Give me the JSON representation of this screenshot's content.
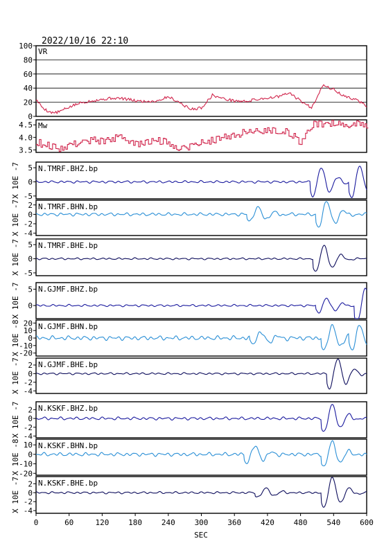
{
  "header": {
    "datetime": "2022/10/16 22:10"
  },
  "colors": {
    "vr_mw": "#d0234a",
    "bhz": "#1a1a9e",
    "bhn": "#2a8fd6",
    "bhe": "#0d0d5c",
    "axis": "#000000",
    "grid": "#000000"
  },
  "chart_data": {
    "type": "line",
    "xlabel": "SEC",
    "xlim": [
      0,
      600
    ],
    "xticks": [
      "0",
      "60",
      "120",
      "180",
      "240",
      "300",
      "360",
      "420",
      "480",
      "540",
      "600"
    ],
    "vr": {
      "label": "VR",
      "ylim": [
        0,
        100
      ],
      "yticks": [
        "0",
        "20",
        "40",
        "60",
        "80",
        "100"
      ],
      "x": [
        0,
        10,
        20,
        30,
        40,
        60,
        80,
        100,
        120,
        140,
        160,
        180,
        200,
        220,
        240,
        260,
        280,
        300,
        320,
        340,
        360,
        380,
        400,
        420,
        440,
        460,
        480,
        500,
        520,
        540,
        560,
        580,
        600
      ],
      "values": [
        24,
        14,
        8,
        5,
        6,
        13,
        19,
        22,
        24,
        26,
        25,
        22,
        21,
        22,
        28,
        20,
        10,
        12,
        30,
        25,
        22,
        21,
        24,
        26,
        28,
        33,
        22,
        12,
        44,
        38,
        28,
        24,
        15
      ]
    },
    "mw": {
      "label": "Mw",
      "ylim": [
        3.4,
        4.7
      ],
      "yticks": [
        "3.5",
        "4.0",
        "4.5"
      ],
      "x": [
        0,
        20,
        40,
        60,
        80,
        100,
        120,
        140,
        160,
        180,
        200,
        220,
        240,
        260,
        280,
        300,
        320,
        340,
        360,
        380,
        400,
        420,
        440,
        460,
        480,
        500,
        520,
        540,
        560,
        580,
        600
      ],
      "values": [
        3.8,
        3.7,
        3.55,
        3.7,
        3.8,
        3.9,
        3.85,
        3.95,
        4.0,
        3.7,
        3.8,
        3.9,
        3.75,
        3.6,
        3.65,
        3.8,
        3.9,
        4.0,
        4.1,
        4.2,
        4.25,
        4.3,
        4.3,
        4.15,
        3.8,
        4.5,
        4.55,
        4.6,
        4.5,
        4.55,
        4.5
      ]
    },
    "traces": [
      {
        "label": "N.TMRF.BHZ.bp",
        "unit": "X 10E -7",
        "yticks": [
          "-5",
          "0",
          "5"
        ],
        "ylim": [
          -6,
          7
        ],
        "color_key": "bhz",
        "noise": 0.45,
        "seed": 11,
        "events": [
          {
            "t": 510,
            "amp": 5.2
          },
          {
            "t": 580,
            "amp": 6.0
          }
        ]
      },
      {
        "label": "N.TMRF.BHN.bp",
        "unit": "X 10E -7",
        "yticks": [
          "-4",
          "-2",
          "0",
          "2"
        ],
        "ylim": [
          -4.5,
          3
        ],
        "color_key": "bhn",
        "noise": 0.35,
        "seed": 23,
        "events": [
          {
            "t": 395,
            "amp": 1.5
          },
          {
            "t": 520,
            "amp": 3.0
          }
        ]
      },
      {
        "label": "N.TMRF.BHE.bp",
        "unit": "X 10E -7",
        "yticks": [
          "-5",
          "0",
          "5"
        ],
        "ylim": [
          -6,
          7
        ],
        "color_key": "bhe",
        "noise": 0.35,
        "seed": 37,
        "events": [
          {
            "t": 515,
            "amp": 5.0
          }
        ]
      },
      {
        "label": "N.GJMF.BHZ.bp",
        "unit": "X 10E -7",
        "yticks": [
          "0",
          "5"
        ],
        "ylim": [
          -4,
          7
        ],
        "color_key": "bhz",
        "noise": 0.35,
        "seed": 41,
        "events": [
          {
            "t": 520,
            "amp": 2.2
          },
          {
            "t": 590,
            "amp": 5.5
          }
        ]
      },
      {
        "label": "N.GJMF.BHN.bp",
        "unit": "X 10E -8",
        "yticks": [
          "-20",
          "-10",
          "0",
          "10",
          "20"
        ],
        "ylim": [
          -24,
          24
        ],
        "color_key": "bhn",
        "noise": 3.0,
        "seed": 53,
        "events": [
          {
            "t": 400,
            "amp": 8
          },
          {
            "t": 530,
            "amp": 18
          },
          {
            "t": 580,
            "amp": 20
          }
        ]
      },
      {
        "label": "N.GJMF.BHE.bp",
        "unit": "X 10E -7",
        "yticks": [
          "-4",
          "-2",
          "0",
          "2"
        ],
        "ylim": [
          -4.6,
          3.6
        ],
        "color_key": "bhe",
        "noise": 0.25,
        "seed": 67,
        "events": [
          {
            "t": 540,
            "amp": 3.6
          }
        ]
      },
      {
        "label": "N.KSKF.BHZ.bp",
        "unit": "X 10E -7",
        "yticks": [
          "-4",
          "-2",
          "0",
          "2"
        ],
        "ylim": [
          -4.4,
          3.8
        ],
        "color_key": "bhz",
        "noise": 0.35,
        "seed": 71,
        "events": [
          {
            "t": 530,
            "amp": 3.2
          }
        ]
      },
      {
        "label": "N.KSKF.BHN.bp",
        "unit": "X 10E -8",
        "yticks": [
          "-20",
          "-10",
          "0",
          "10"
        ],
        "ylim": [
          -22,
          16
        ],
        "color_key": "bhn",
        "noise": 2.0,
        "seed": 83,
        "events": [
          {
            "t": 390,
            "amp": 9
          },
          {
            "t": 530,
            "amp": 14
          }
        ]
      },
      {
        "label": "N.KSKF.BHE.bp",
        "unit": "X 10E -7",
        "yticks": [
          "-4",
          "-2",
          "0",
          "2"
        ],
        "ylim": [
          -4.6,
          3.6
        ],
        "color_key": "bhe",
        "noise": 0.25,
        "seed": 97,
        "events": [
          {
            "t": 410,
            "amp": 1.0
          },
          {
            "t": 530,
            "amp": 3.6
          }
        ]
      }
    ]
  }
}
